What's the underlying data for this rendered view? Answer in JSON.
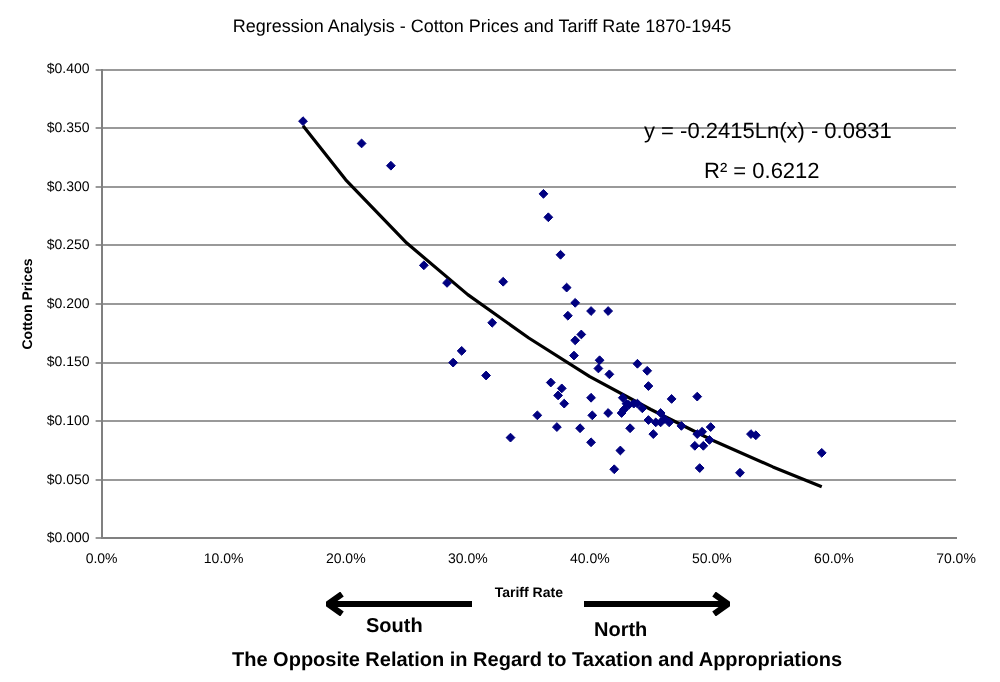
{
  "chart_data": {
    "type": "scatter",
    "title": "Regression Analysis - Cotton Prices and Tariff Rate 1870-1945",
    "xlabel": "Tariff Rate",
    "ylabel": "Cotton Prices",
    "xlim": [
      0,
      70
    ],
    "xticks": [
      {
        "value": 0,
        "label": "0.0%"
      },
      {
        "value": 10,
        "label": "10.0%"
      },
      {
        "value": 20,
        "label": "20.0%"
      },
      {
        "value": 30,
        "label": "30.0%"
      },
      {
        "value": 40,
        "label": "40.0%"
      },
      {
        "value": 50,
        "label": "50.0%"
      },
      {
        "value": 60,
        "label": "60.0%"
      },
      {
        "value": 70,
        "label": "70.0%"
      }
    ],
    "ylim": [
      0,
      0.4
    ],
    "yticks": [
      {
        "value": 0,
        "label": "$0.000"
      },
      {
        "value": 0.05,
        "label": "$0.050"
      },
      {
        "value": 0.1,
        "label": "$0.100"
      },
      {
        "value": 0.15,
        "label": "$0.150"
      },
      {
        "value": 0.2,
        "label": "$0.200"
      },
      {
        "value": 0.25,
        "label": "$0.250"
      },
      {
        "value": 0.3,
        "label": "$0.300"
      },
      {
        "value": 0.35,
        "label": "$0.350"
      },
      {
        "value": 0.4,
        "label": "$0.400"
      }
    ],
    "grid": "y",
    "legend": false,
    "marker": "diamond",
    "series": [
      {
        "type": "scatter",
        "color": "#000080",
        "x": [
          16.5,
          21.3,
          23.7,
          36.2,
          36.6,
          37.6,
          26.4,
          28.3,
          32.9,
          38.1,
          38.8,
          40.1,
          38.2,
          32.0,
          39.3,
          38.8,
          38.7,
          29.5,
          28.8,
          31.5,
          36.8,
          37.7,
          37.4,
          37.9,
          40.1,
          35.7,
          40.2,
          41.5,
          37.3,
          39.2,
          40.1,
          33.5,
          42.0,
          41.5,
          40.8,
          40.7,
          41.6,
          43.9,
          44.7,
          44.8,
          46.7,
          48.8,
          42.7,
          43.0,
          43.2,
          43.6,
          42.8,
          42.6,
          44.3,
          43.9,
          45.8,
          46.1,
          44.8,
          45.4,
          45.8,
          46.5,
          47.5,
          43.3,
          45.2,
          48.8,
          49.2,
          49.9,
          49.8,
          48.6,
          49.3,
          53.2,
          53.6,
          42.5,
          49.0,
          52.3,
          59.0
        ],
        "values": [
          0.356,
          0.337,
          0.318,
          0.294,
          0.274,
          0.242,
          0.233,
          0.218,
          0.219,
          0.214,
          0.201,
          0.194,
          0.19,
          0.184,
          0.174,
          0.169,
          0.156,
          0.16,
          0.15,
          0.139,
          0.133,
          0.128,
          0.122,
          0.115,
          0.12,
          0.105,
          0.105,
          0.107,
          0.095,
          0.094,
          0.082,
          0.086,
          0.059,
          0.194,
          0.152,
          0.145,
          0.14,
          0.149,
          0.143,
          0.13,
          0.119,
          0.121,
          0.12,
          0.115,
          0.114,
          0.115,
          0.11,
          0.107,
          0.111,
          0.115,
          0.107,
          0.102,
          0.101,
          0.099,
          0.099,
          0.099,
          0.096,
          0.094,
          0.089,
          0.089,
          0.091,
          0.095,
          0.084,
          0.079,
          0.079,
          0.089,
          0.088,
          0.075,
          0.06,
          0.056,
          0.073
        ]
      },
      {
        "type": "line",
        "color": "#000000",
        "marker": "none",
        "x": [
          16.5,
          20,
          25,
          30,
          35,
          40,
          45,
          50,
          55,
          59
        ],
        "values": [
          0.352,
          0.306,
          0.252,
          0.208,
          0.171,
          0.138,
          0.11,
          0.084,
          0.061,
          0.044
        ]
      }
    ],
    "annotations": [
      "y = -0.2415Ln(x) - 0.0831",
      "R² = 0.6212",
      "South",
      "North",
      "The Opposite Relation in Regard to Taxation and Appropriations"
    ]
  }
}
